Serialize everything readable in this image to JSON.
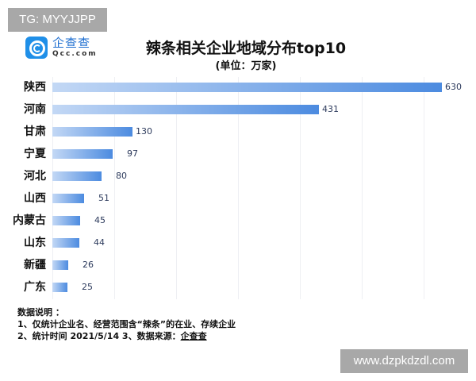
{
  "watermarks": {
    "top": "TG: MYYJJPP",
    "bottom": "www.dzpkdzdl.com"
  },
  "logo": {
    "cn": "企查查",
    "en": "Qcc.com",
    "color": "#1f8fe8"
  },
  "chart_data": {
    "type": "bar",
    "orientation": "horizontal",
    "title": "辣条相关企业地域分布top10",
    "subtitle": "(单位：万家)",
    "categories": [
      "陕西",
      "河南",
      "甘肃",
      "宁夏",
      "河北",
      "山西",
      "内蒙古",
      "山东",
      "新疆",
      "广东"
    ],
    "values": [
      630,
      431,
      130,
      97,
      80,
      51,
      45,
      44,
      26,
      25
    ],
    "value_labels": [
      "630",
      "431",
      "130",
      "97",
      "80",
      "51",
      "45",
      "44",
      "26",
      "25"
    ],
    "xlabel": "",
    "ylabel": "",
    "xlim": [
      0,
      700
    ],
    "grid": true,
    "gridlines": [
      0,
      100,
      200,
      300,
      400,
      500,
      600
    ],
    "bar_color_start": "#c3d8f5",
    "bar_color_end": "#4c8be0"
  },
  "notes": {
    "heading": "数据说明 ：",
    "line1": "1、仅统计企业名、经营范围含“辣条”的在业、存续企业",
    "line2_prefix": "2、统计时间  2021/5/14      3、数据来源：",
    "line2_source": "企查查"
  }
}
